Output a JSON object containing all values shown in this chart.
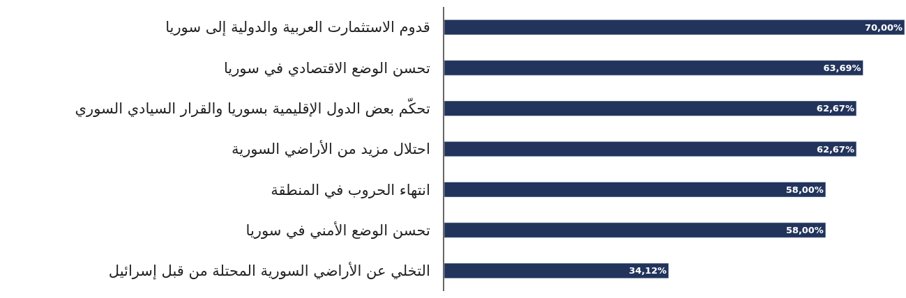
{
  "chart_data": {
    "type": "bar",
    "orientation": "horizontal",
    "categories": [
      "قدوم الاستثمارت العربية والدولية إلى سوريا",
      "تحسن الوضع الاقتصادي في سوريا",
      "تحكّم بعض الدول الإقليمية بسوريا والقرار السيادي السوري",
      "احتلال مزيد من الأراضي السورية",
      "انتهاء الحروب في المنطقة",
      "تحسن الوضع الأمني في سوريا",
      "التخلي عن الأراضي السورية المحتلة من قبل إسرائيل"
    ],
    "values": [
      70.0,
      63.69,
      62.67,
      62.67,
      58.0,
      58.0,
      34.12
    ],
    "value_labels": [
      "70,00%",
      "63,69%",
      "62,67%",
      "62,67%",
      "58,00%",
      "58,00%",
      "34,12%"
    ],
    "color": "#22345c",
    "xlim": [
      0,
      70
    ],
    "tick_labels": "y"
  }
}
